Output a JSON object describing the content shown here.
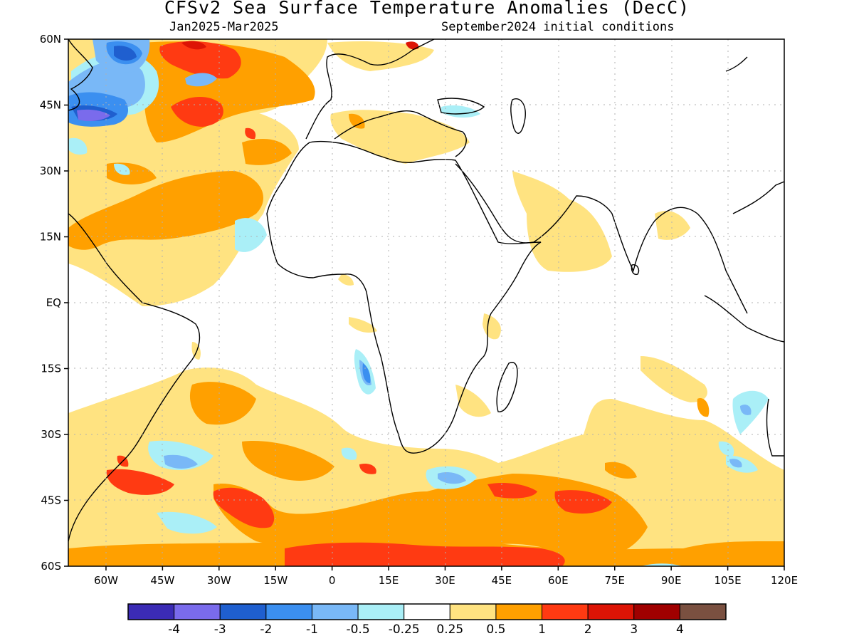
{
  "title": "CFSv2 Sea Surface Temperature Anomalies (DecC)",
  "subtitle_left": "Jan2025-Mar2025",
  "subtitle_right": "September2024 initial conditions",
  "map": {
    "lon_range": [
      -70,
      120
    ],
    "lat_range": [
      -60,
      60
    ],
    "grid": true,
    "x_tick_labels": [
      "60W",
      "45W",
      "30W",
      "15W",
      "0",
      "15E",
      "30E",
      "45E",
      "60E",
      "75E",
      "90E",
      "105E",
      "120E"
    ],
    "y_tick_labels": [
      "60N",
      "45N",
      "30N",
      "15N",
      "EQ",
      "15S",
      "30S",
      "45S",
      "60S"
    ]
  },
  "colorbar": {
    "colors": [
      "#3b2bb5",
      "#7a6bec",
      "#1f5fcf",
      "#3b8ff0",
      "#79b8f7",
      "#aaeff7",
      "#ffffff",
      "#ffe381",
      "#ffa000",
      "#ff3a12",
      "#dd1405",
      "#a00000",
      "#7a5040"
    ],
    "labels": [
      "-4",
      "-3",
      "-2",
      "-1",
      "-0.5",
      "-0.25",
      "0.25",
      "0.5",
      "1",
      "2",
      "3",
      "4"
    ]
  }
}
